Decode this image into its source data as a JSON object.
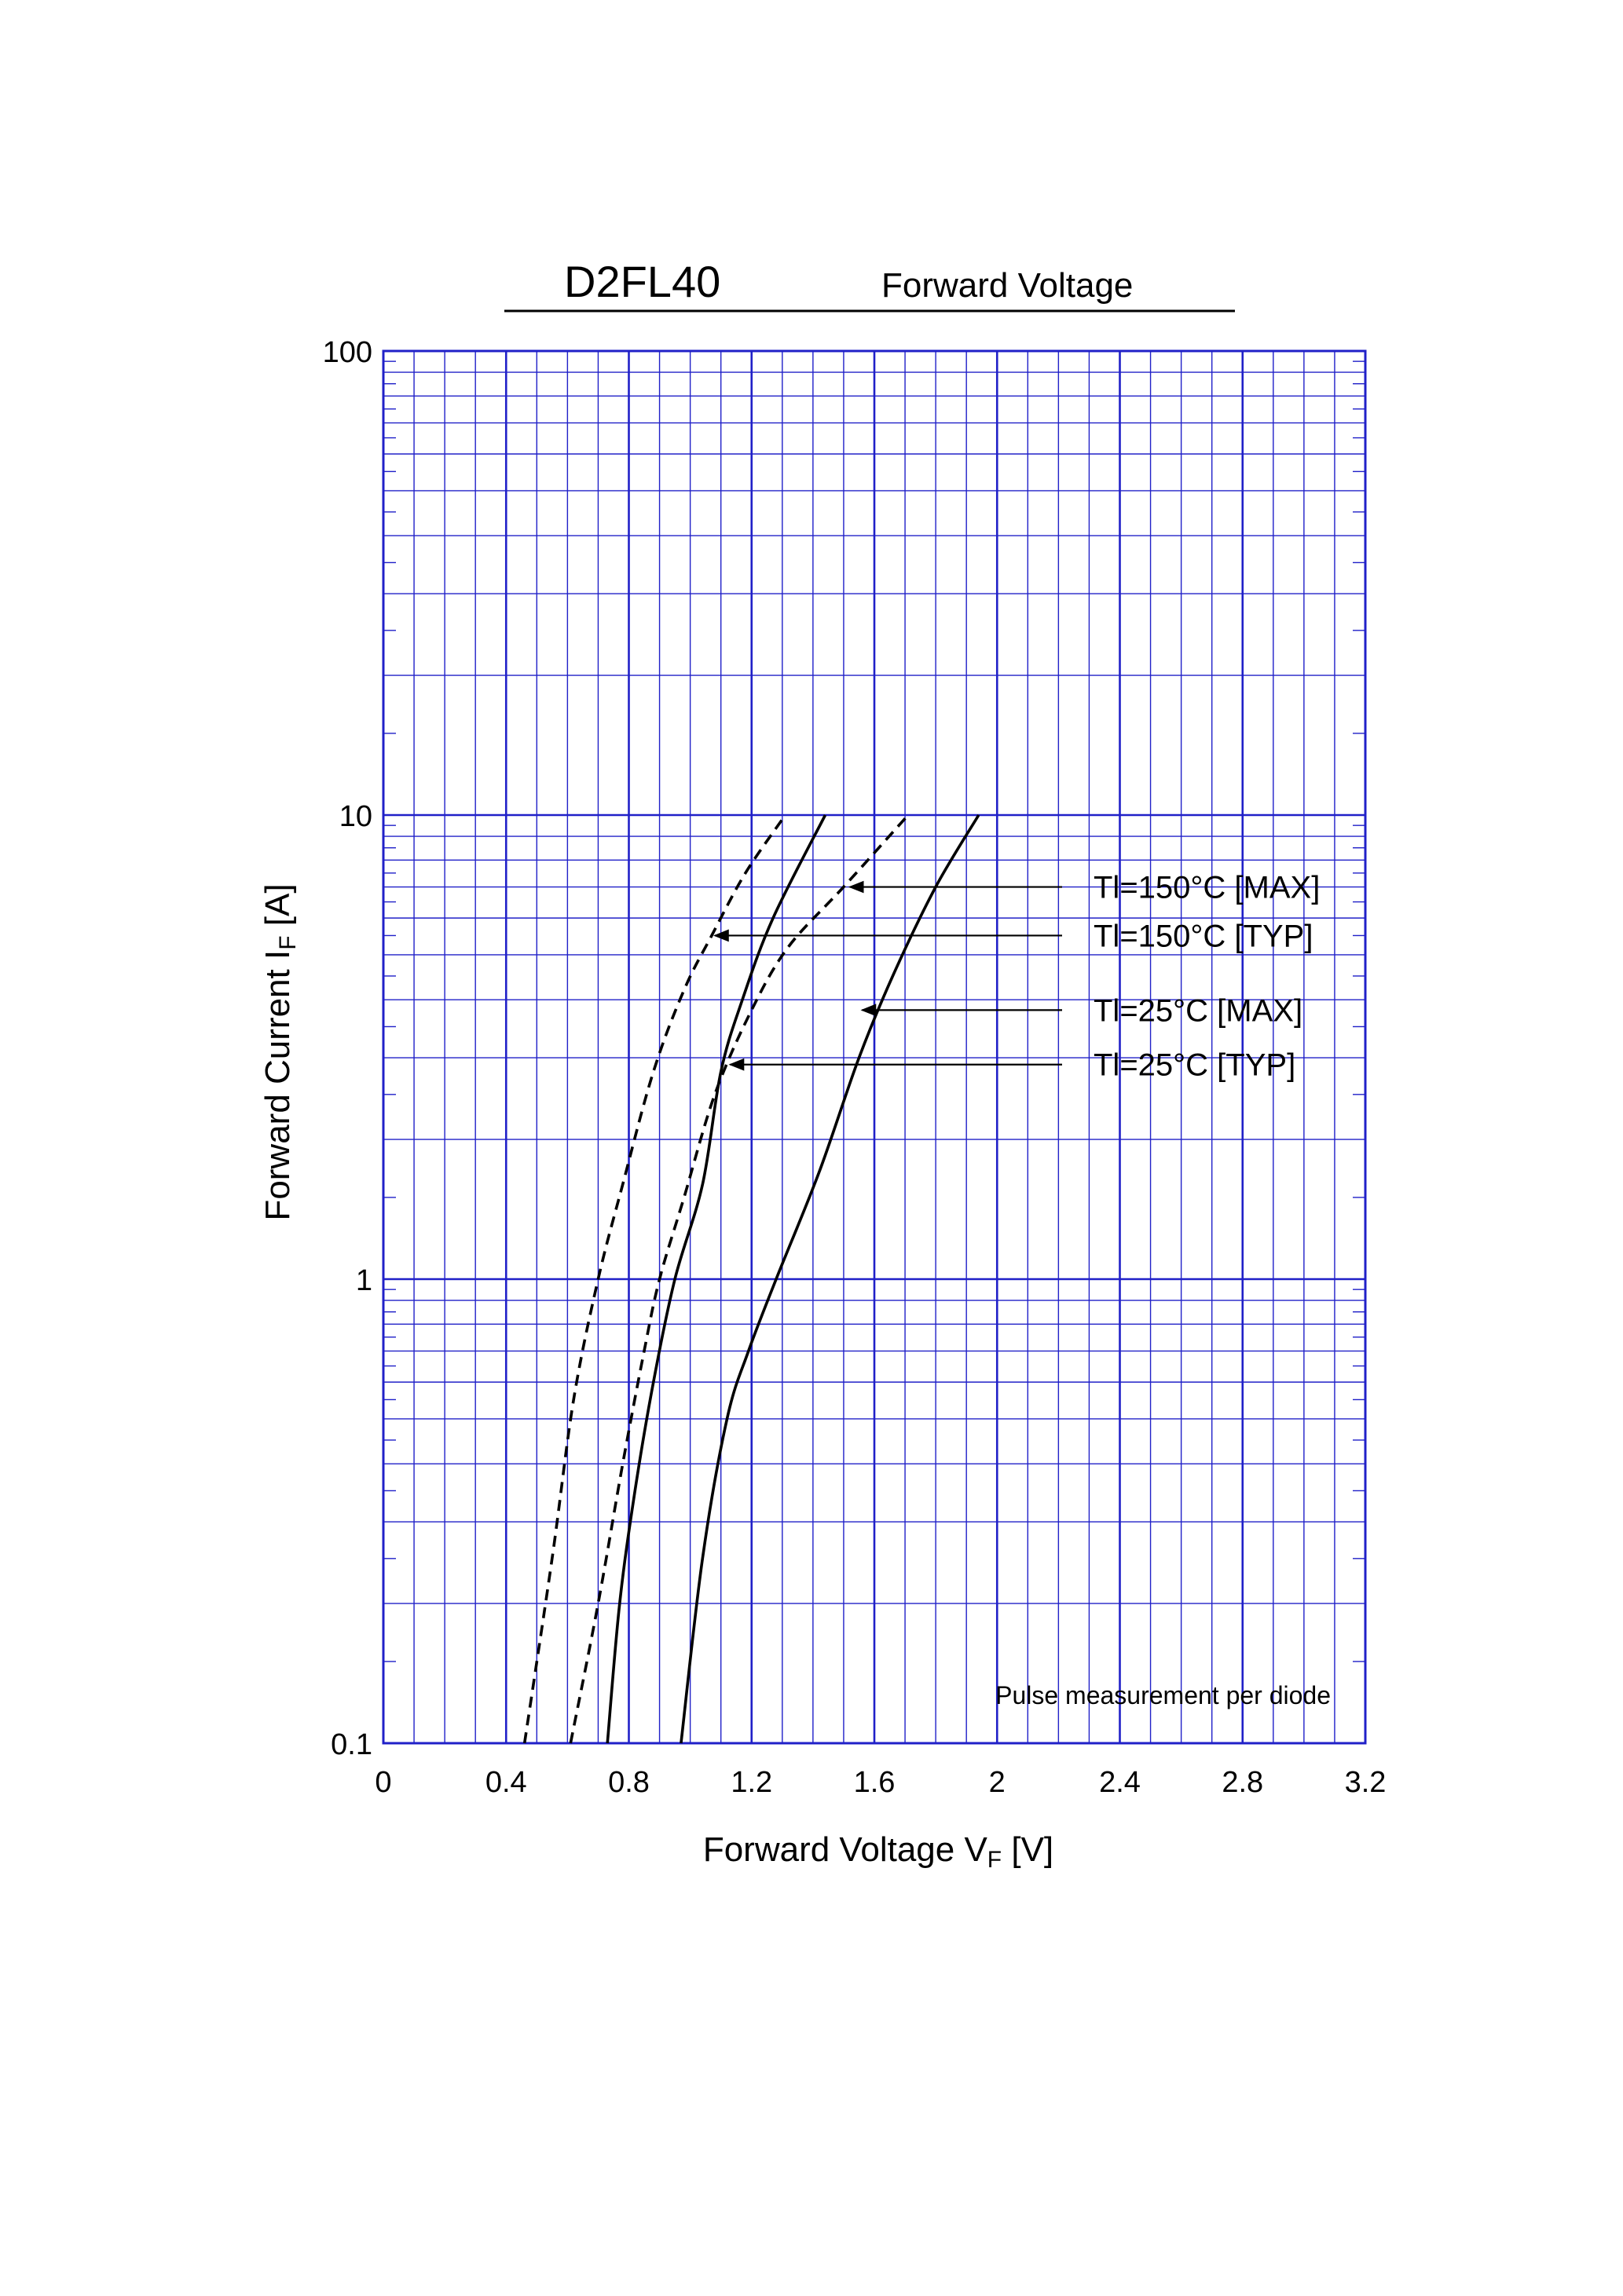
{
  "header": {
    "part_number": "D2FL40",
    "title": "Forward Voltage"
  },
  "chart_data": {
    "type": "line",
    "title": "Forward Voltage",
    "xlabel": {
      "main": "Forward Voltage  V",
      "sub": "F",
      "unit": " [V]"
    },
    "ylabel": {
      "main": "Forward Current  I",
      "sub": "F",
      "unit": " [A]"
    },
    "xlim": [
      0,
      3.2
    ],
    "ylim": [
      0.1,
      100
    ],
    "yscale": "log",
    "grid": true,
    "x_ticks": [
      "0",
      "0.4",
      "0.8",
      "1.2",
      "1.6",
      "2",
      "2.4",
      "2.8",
      "3.2"
    ],
    "y_ticks": [
      "0.1",
      "1",
      "10",
      "100"
    ],
    "note": "Pulse measurement per diode",
    "series": [
      {
        "name": "Tl=150°C [MAX]",
        "style": "dashed",
        "points": [
          [
            0.61,
            0.1
          ],
          [
            0.7,
            0.2
          ],
          [
            0.78,
            0.4
          ],
          [
            0.85,
            0.7
          ],
          [
            0.9,
            1.0
          ],
          [
            0.98,
            1.5
          ],
          [
            1.08,
            2.5
          ],
          [
            1.2,
            3.8
          ],
          [
            1.32,
            5.2
          ],
          [
            1.5,
            7.0
          ],
          [
            1.71,
            10.0
          ]
        ]
      },
      {
        "name": "Tl=150°C [TYP]",
        "style": "dashed",
        "points": [
          [
            0.46,
            0.1
          ],
          [
            0.55,
            0.25
          ],
          [
            0.62,
            0.55
          ],
          [
            0.7,
            1.0
          ],
          [
            0.78,
            1.6
          ],
          [
            0.88,
            2.8
          ],
          [
            0.98,
            4.2
          ],
          [
            1.07,
            5.5
          ],
          [
            1.18,
            7.5
          ],
          [
            1.31,
            10.0
          ]
        ]
      },
      {
        "name": "Tl=25°C [MAX]",
        "style": "solid",
        "points": [
          [
            0.97,
            0.1
          ],
          [
            1.04,
            0.25
          ],
          [
            1.12,
            0.5
          ],
          [
            1.19,
            0.7
          ],
          [
            1.28,
            1.0
          ],
          [
            1.42,
            1.7
          ],
          [
            1.55,
            3.0
          ],
          [
            1.66,
            4.5
          ],
          [
            1.8,
            7.0
          ],
          [
            1.94,
            10.0
          ]
        ]
      },
      {
        "name": "Tl=25°C [TYP]",
        "style": "solid",
        "points": [
          [
            0.73,
            0.1
          ],
          [
            0.77,
            0.2
          ],
          [
            0.82,
            0.35
          ],
          [
            0.88,
            0.6
          ],
          [
            0.95,
            1.0
          ],
          [
            1.04,
            1.6
          ],
          [
            1.1,
            2.8
          ],
          [
            1.17,
            4.0
          ],
          [
            1.27,
            6.0
          ],
          [
            1.44,
            10.0
          ]
        ]
      }
    ],
    "annotations": [
      {
        "label": "Tl=150°C [MAX]",
        "target": [
          1.51,
          7.0
        ]
      },
      {
        "label": "Tl=150°C [TYP]",
        "target": [
          1.07,
          5.5
        ]
      },
      {
        "label": "Tl=25°C [MAX]",
        "target": [
          1.55,
          3.8
        ]
      },
      {
        "label": "Tl=25°C [TYP]",
        "target": [
          1.12,
          2.9
        ]
      }
    ],
    "colors": {
      "grid": "#2020c8",
      "curve": "#000000"
    }
  }
}
